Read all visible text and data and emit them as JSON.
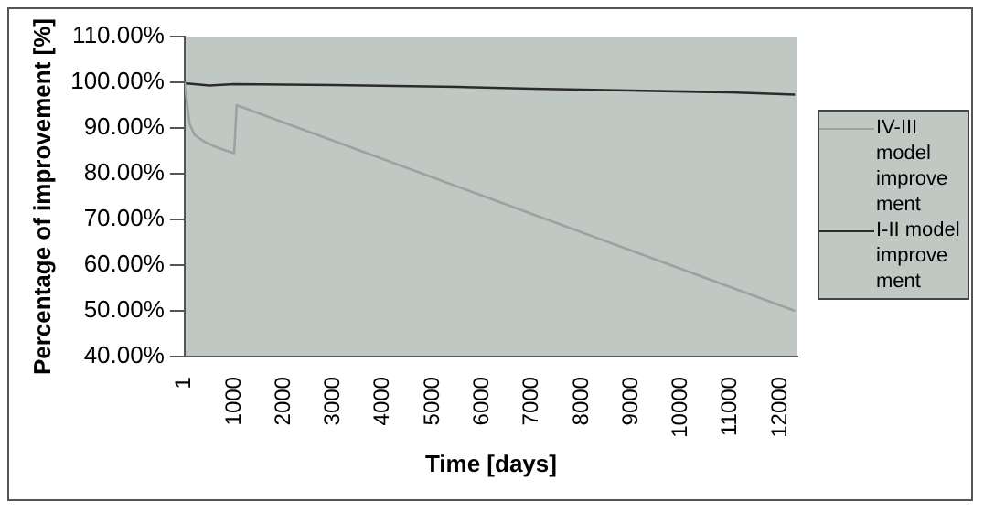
{
  "chart_data": {
    "type": "line",
    "xlabel": "Time [days]",
    "ylabel": "Percentage of improvement [%]",
    "xlim": [
      1,
      12350
    ],
    "xticks": [
      1,
      1000,
      2000,
      3000,
      4000,
      5000,
      6000,
      7000,
      8000,
      9000,
      10000,
      11000,
      12000
    ],
    "ylim": [
      40,
      110
    ],
    "yticks": [
      {
        "value": 40,
        "label": "40.00%"
      },
      {
        "value": 50,
        "label": "50.00%"
      },
      {
        "value": 60,
        "label": "60.00%"
      },
      {
        "value": 70,
        "label": "70.00%"
      },
      {
        "value": 80,
        "label": "80.00%"
      },
      {
        "value": 90,
        "label": "90.00%"
      },
      {
        "value": 100,
        "label": "100.00%"
      },
      {
        "value": 110,
        "label": "110.00%"
      }
    ],
    "grid": false,
    "legend": "right",
    "marker": "none",
    "series": [
      {
        "name": "IV-III model improvement",
        "color": "#9aa39f",
        "x": [
          1,
          100,
          200,
          400,
          600,
          800,
          1000,
          1050,
          2000,
          3000,
          4000,
          5000,
          6000,
          7000,
          8000,
          9000,
          10000,
          11000,
          12300
        ],
        "values": [
          100,
          91,
          88.5,
          87,
          86,
          85.2,
          84.5,
          95,
          91.2,
          87.2,
          83.2,
          79.2,
          75.2,
          71.2,
          67.2,
          63.2,
          59.2,
          55.2,
          50
        ]
      },
      {
        "name": "I-II model improvement",
        "color": "#2b2b2b",
        "x": [
          1,
          500,
          1000,
          3000,
          5500,
          7000,
          9000,
          11000,
          12300
        ],
        "values": [
          99.8,
          99.3,
          99.6,
          99.4,
          99,
          98.6,
          98.2,
          97.8,
          97.3
        ]
      }
    ]
  }
}
